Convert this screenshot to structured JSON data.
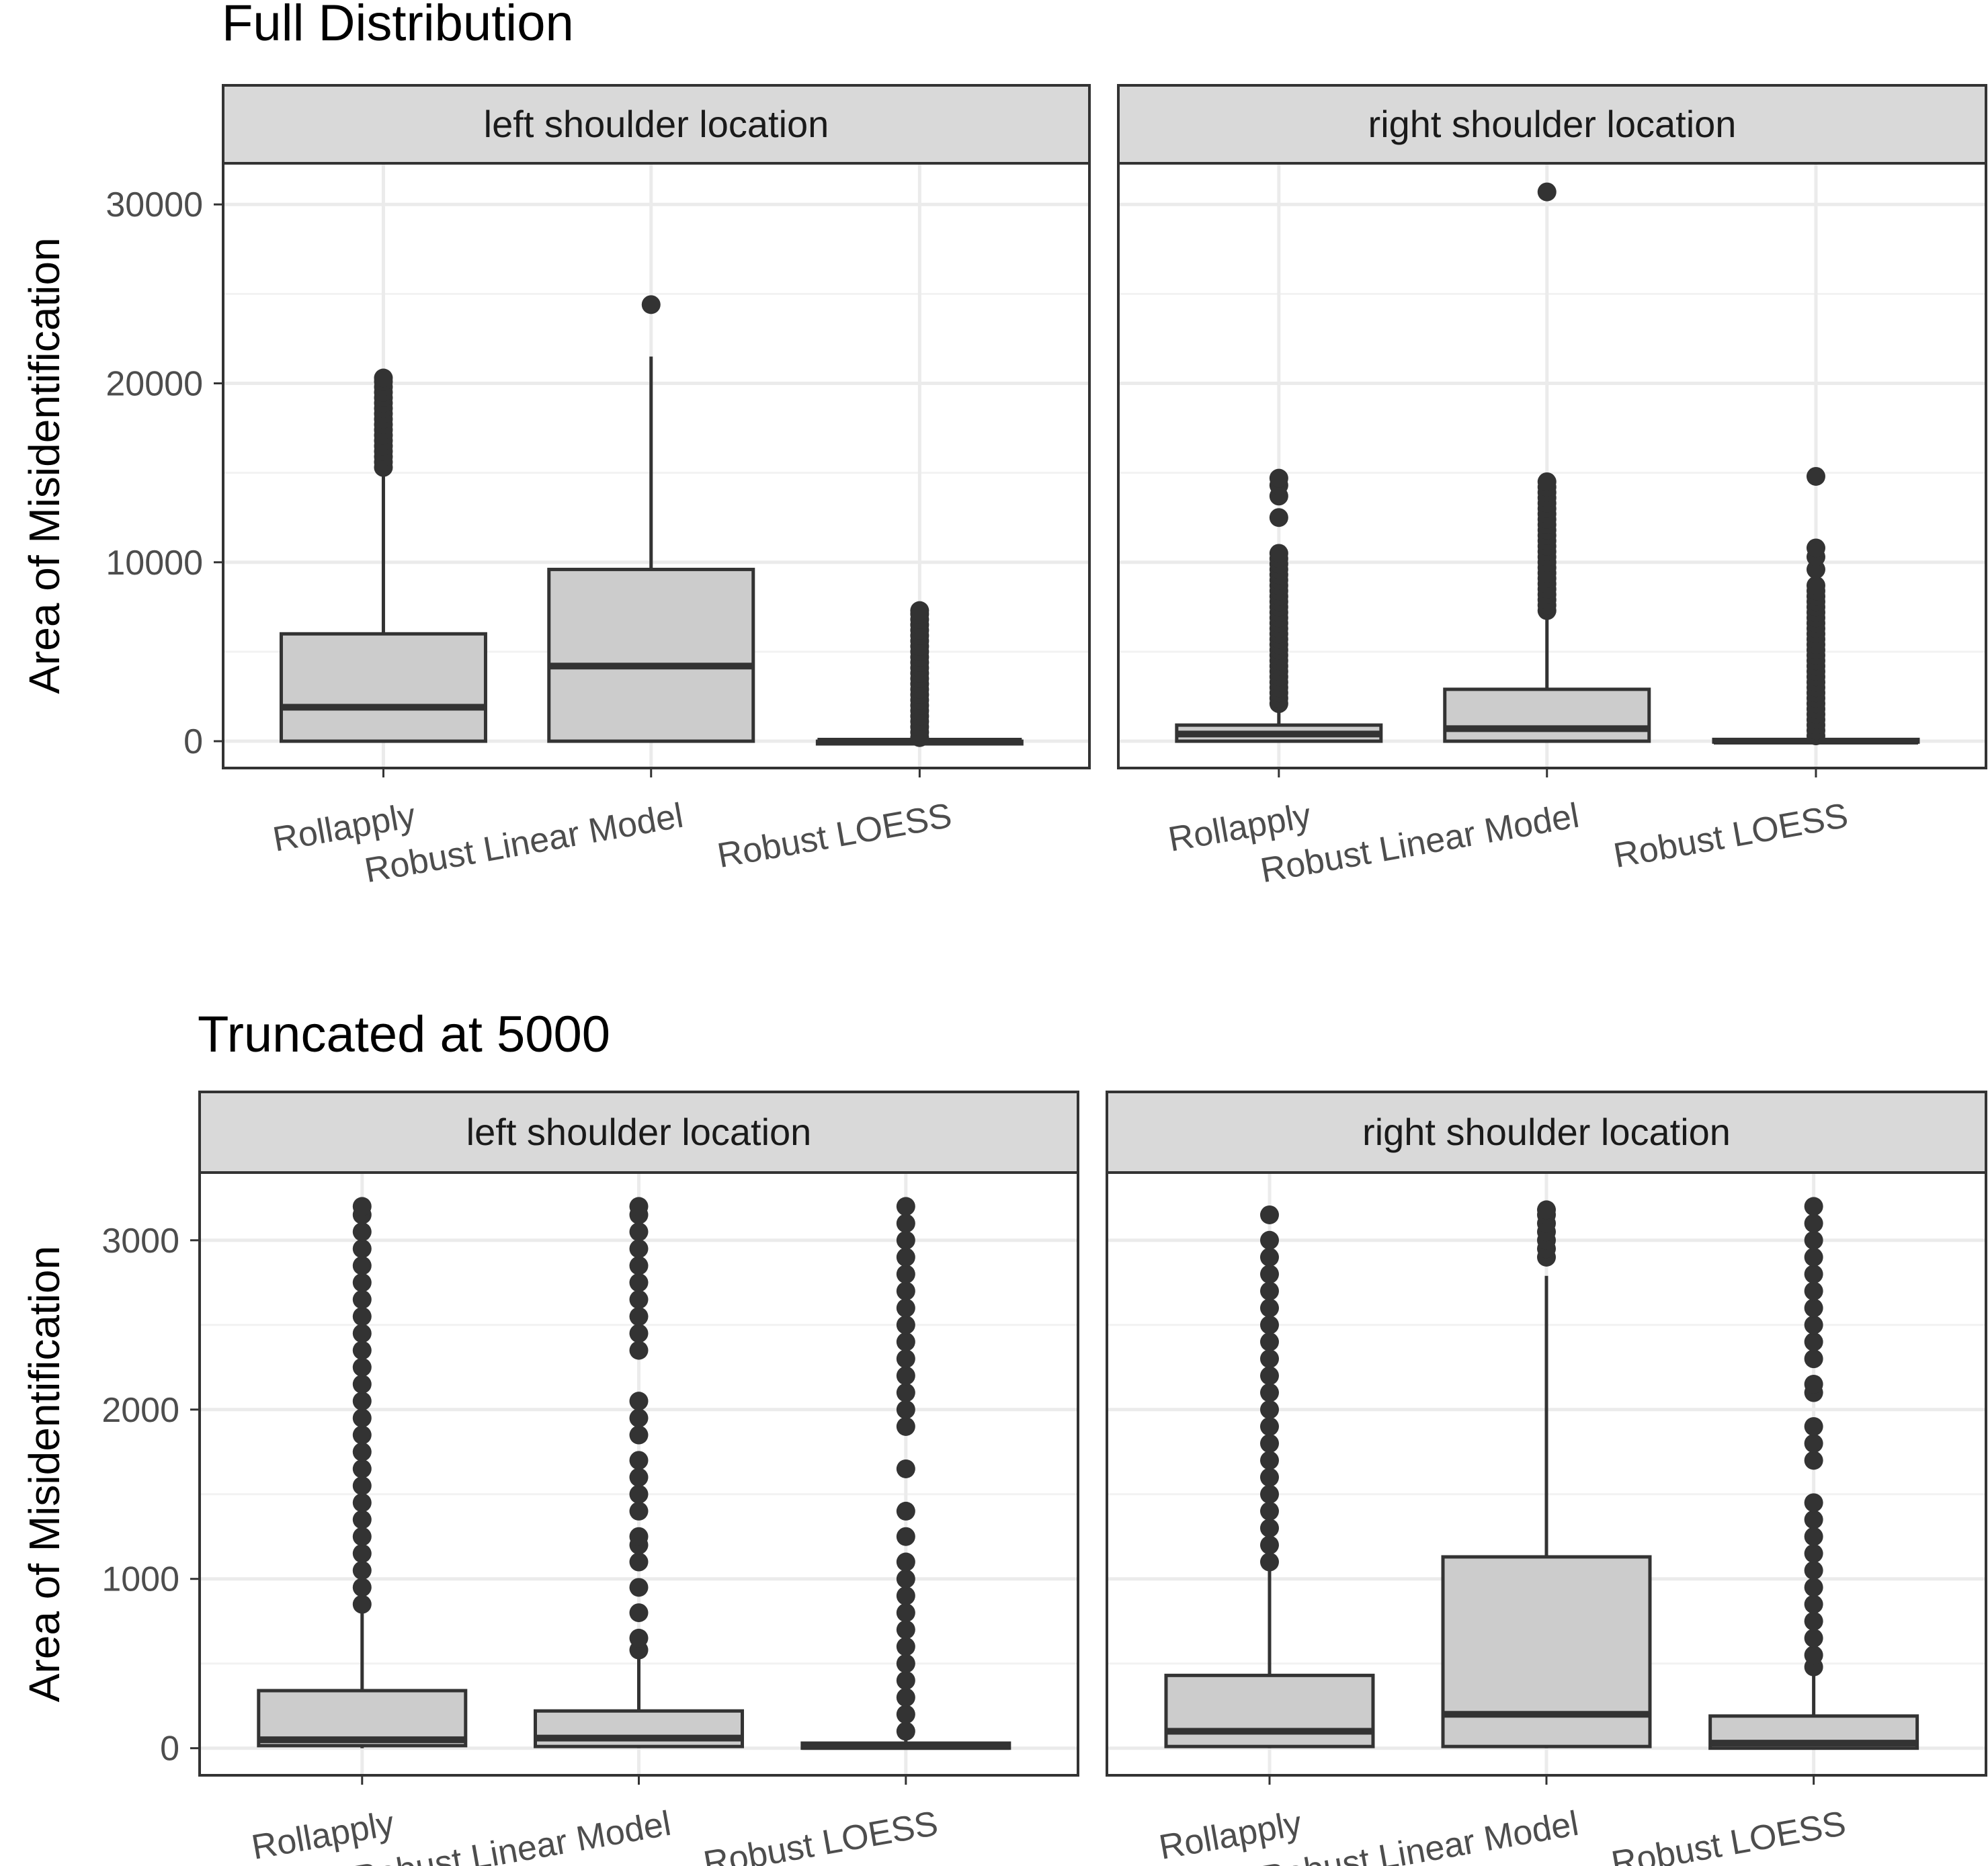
{
  "chart_data": [
    {
      "type": "boxplot",
      "title": "Full Distribution",
      "ylabel": "Area of Misidentification",
      "xlabel": "",
      "ylim": [
        -1500,
        32300
      ],
      "yticks": [
        0,
        10000,
        20000,
        30000
      ],
      "yticklabels": [
        "0",
        "10000",
        "20000",
        "30000"
      ],
      "minor_gridlines": [
        5000,
        15000,
        25000
      ],
      "grid": true,
      "categories": [
        "Rollapply",
        "Robust Linear Model",
        "Robust LOESS"
      ],
      "box_fill": "#cccccc",
      "line_color": "#333333",
      "strip_fill": "#d9d9d9",
      "panels": [
        {
          "label": "left shoulder location",
          "boxes": [
            {
              "category": "Rollapply",
              "min": 0,
              "q1": 0,
              "median": 1900,
              "q3": 6000,
              "max": 15100,
              "outliers": [
                15300,
                15600,
                15900,
                16200,
                16500,
                16800,
                17100,
                17400,
                17700,
                18000,
                18300,
                18600,
                18900,
                19200,
                19500,
                19800,
                20100,
                20300
              ]
            },
            {
              "category": "Robust Linear Model",
              "min": 0,
              "q1": 0,
              "median": 4200,
              "q3": 9600,
              "max": 21500,
              "outliers": [
                24400
              ]
            },
            {
              "category": "Robust LOESS",
              "min": 0,
              "q1": 0,
              "median": 0,
              "q3": 0,
              "max": 0,
              "outliers": [
                200,
                500,
                800,
                1100,
                1400,
                1700,
                2000,
                2300,
                2600,
                2900,
                3200,
                3500,
                3800,
                4100,
                4400,
                4700,
                5000,
                5300,
                5600,
                5900,
                6200,
                6500,
                6800,
                7100,
                7300
              ]
            }
          ]
        },
        {
          "label": "right shoulder location",
          "boxes": [
            {
              "category": "Rollapply",
              "min": 0,
              "q1": 0,
              "median": 400,
              "q3": 900,
              "max": 2000,
              "outliers": [
                2100,
                2400,
                2700,
                3000,
                3300,
                3600,
                3900,
                4200,
                4500,
                4800,
                5100,
                5400,
                5700,
                6000,
                6300,
                6600,
                6900,
                7200,
                7500,
                7800,
                8100,
                8400,
                8700,
                9000,
                9300,
                9600,
                9900,
                10200,
                10500,
                12500,
                13700,
                14300,
                14700
              ]
            },
            {
              "category": "Robust Linear Model",
              "min": 0,
              "q1": 0,
              "median": 700,
              "q3": 2900,
              "max": 7100,
              "outliers": [
                7300,
                7600,
                7900,
                8200,
                8500,
                8800,
                9100,
                9400,
                9700,
                10000,
                10300,
                10600,
                10900,
                11200,
                11500,
                11800,
                12100,
                12400,
                12700,
                13000,
                13300,
                13600,
                13900,
                14200,
                14500,
                30700
              ]
            },
            {
              "category": "Robust LOESS",
              "min": 0,
              "q1": 0,
              "median": 0,
              "q3": 100,
              "max": 200,
              "outliers": [
                300,
                600,
                900,
                1200,
                1500,
                1800,
                2100,
                2400,
                2700,
                3000,
                3300,
                3600,
                3900,
                4200,
                4500,
                4800,
                5100,
                5400,
                5700,
                6000,
                6300,
                6600,
                6900,
                7200,
                7500,
                7800,
                8100,
                8400,
                8700,
                9600,
                10300,
                10800,
                14800
              ]
            }
          ]
        }
      ]
    },
    {
      "type": "boxplot",
      "title": "Truncated at 5000",
      "ylabel": "Area of Misidentification",
      "xlabel": "",
      "ylim": [
        -160,
        3400
      ],
      "yticks": [
        0,
        1000,
        2000,
        3000
      ],
      "yticklabels": [
        "0",
        "1000",
        "2000",
        "3000"
      ],
      "minor_gridlines": [
        500,
        1500,
        2500
      ],
      "grid": true,
      "categories": [
        "Rollapply",
        "Robust Linear Model",
        "Robust LOESS"
      ],
      "box_fill": "#cccccc",
      "line_color": "#333333",
      "strip_fill": "#d9d9d9",
      "panels": [
        {
          "label": "left shoulder location",
          "boxes": [
            {
              "category": "Rollapply",
              "min": 0,
              "q1": 15,
              "median": 50,
              "q3": 340,
              "max": 820,
              "outliers": [
                850,
                950,
                1050,
                1150,
                1250,
                1350,
                1450,
                1550,
                1650,
                1750,
                1850,
                1950,
                2050,
                2150,
                2250,
                2350,
                2450,
                2550,
                2650,
                2750,
                2850,
                2950,
                3050,
                3150,
                3200
              ]
            },
            {
              "category": "Robust Linear Model",
              "min": 0,
              "q1": 10,
              "median": 60,
              "q3": 220,
              "max": 560,
              "outliers": [
                580,
                650,
                800,
                950,
                1100,
                1200,
                1250,
                1400,
                1500,
                1600,
                1700,
                1850,
                1950,
                2050,
                2350,
                2450,
                2550,
                2650,
                2750,
                2850,
                2950,
                3050,
                3150,
                3200
              ]
            },
            {
              "category": "Robust LOESS",
              "min": 0,
              "q1": 0,
              "median": 10,
              "q3": 30,
              "max": 80,
              "outliers": [
                100,
                200,
                300,
                400,
                500,
                600,
                700,
                800,
                900,
                1000,
                1100,
                1250,
                1400,
                1650,
                1900,
                2000,
                2100,
                2200,
                2300,
                2400,
                2500,
                2600,
                2700,
                2800,
                2900,
                3000,
                3100,
                3200
              ]
            }
          ]
        },
        {
          "label": "right shoulder location",
          "boxes": [
            {
              "category": "Rollapply",
              "min": 0,
              "q1": 10,
              "median": 100,
              "q3": 430,
              "max": 1060,
              "outliers": [
                1100,
                1200,
                1300,
                1400,
                1500,
                1600,
                1700,
                1800,
                1900,
                2000,
                2100,
                2200,
                2300,
                2400,
                2500,
                2600,
                2700,
                2800,
                2900,
                3000,
                3150
              ]
            },
            {
              "category": "Robust Linear Model",
              "min": 0,
              "q1": 10,
              "median": 200,
              "q3": 1130,
              "max": 2790,
              "outliers": [
                2900,
                2950,
                3000,
                3050,
                3100,
                3150,
                3180
              ]
            },
            {
              "category": "Robust LOESS",
              "min": 0,
              "q1": 0,
              "median": 30,
              "q3": 190,
              "max": 460,
              "outliers": [
                480,
                550,
                650,
                750,
                850,
                950,
                1050,
                1150,
                1250,
                1350,
                1450,
                1700,
                1800,
                1900,
                2100,
                2150,
                2300,
                2400,
                2500,
                2600,
                2700,
                2800,
                2900,
                3000,
                3100,
                3200
              ]
            }
          ]
        }
      ]
    }
  ]
}
